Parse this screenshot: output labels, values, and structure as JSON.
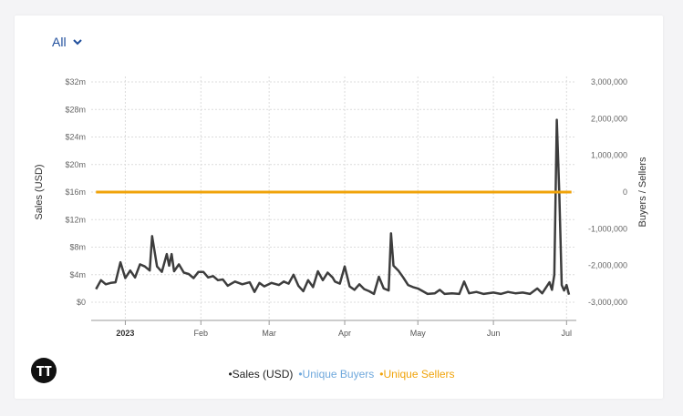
{
  "filter": {
    "range_label": "All"
  },
  "brand": {
    "logo_name": "tt-logo-icon"
  },
  "colors": {
    "sales": "#3d3d3d",
    "buyers": "#6fa8dc",
    "sellers": "#f0a30a",
    "grid": "#dcdcdc",
    "accent": "#1f4e9c"
  },
  "chart_data": {
    "type": "line",
    "title": "",
    "xlabel": "",
    "ylabel": "Sales (USD)",
    "y2label": "Buyers / Sellers",
    "x_start": "2022-12-18",
    "x_end": "2023-07-05",
    "x_ticks": [
      {
        "date": "2023-01-01",
        "label": "2023",
        "bold": true
      },
      {
        "date": "2023-02-01",
        "label": "Feb",
        "bold": false
      },
      {
        "date": "2023-03-01",
        "label": "Mar",
        "bold": false
      },
      {
        "date": "2023-04-01",
        "label": "Apr",
        "bold": false
      },
      {
        "date": "2023-05-01",
        "label": "May",
        "bold": false
      },
      {
        "date": "2023-06-01",
        "label": "Jun",
        "bold": false
      },
      {
        "date": "2023-07-01",
        "label": "Jul",
        "bold": false
      }
    ],
    "ylim": [
      0,
      32000000
    ],
    "y_ticks": [
      {
        "value": 0,
        "label": "$0"
      },
      {
        "value": 4000000,
        "label": "$4m"
      },
      {
        "value": 8000000,
        "label": "$8m"
      },
      {
        "value": 12000000,
        "label": "$12m"
      },
      {
        "value": 16000000,
        "label": "$16m"
      },
      {
        "value": 20000000,
        "label": "$20m"
      },
      {
        "value": 24000000,
        "label": "$24m"
      },
      {
        "value": 28000000,
        "label": "$28m"
      },
      {
        "value": 32000000,
        "label": "$32m"
      }
    ],
    "y2lim": [
      -3000000,
      3000000
    ],
    "y2_ticks": [
      {
        "value": -3000000,
        "label": "-3,000,000"
      },
      {
        "value": -2000000,
        "label": "-2,000,000"
      },
      {
        "value": -1000000,
        "label": "-1,000,000"
      },
      {
        "value": 0,
        "label": "0"
      },
      {
        "value": 1000000,
        "label": "1,000,000"
      },
      {
        "value": 2000000,
        "label": "2,000,000"
      },
      {
        "value": 3000000,
        "label": "3,000,000"
      }
    ],
    "grid": true,
    "legend_position": "bottom-center",
    "series": [
      {
        "name": "Sales (USD)",
        "axis": "left",
        "points": [
          [
            "2022-12-20",
            1.9
          ],
          [
            "2022-12-22",
            3.2
          ],
          [
            "2022-12-24",
            2.6
          ],
          [
            "2022-12-26",
            2.8
          ],
          [
            "2022-12-28",
            2.9
          ],
          [
            "2022-12-30",
            5.8
          ],
          [
            "2023-01-01",
            3.5
          ],
          [
            "2023-01-03",
            4.6
          ],
          [
            "2023-01-05",
            3.6
          ],
          [
            "2023-01-07",
            5.5
          ],
          [
            "2023-01-09",
            5.2
          ],
          [
            "2023-01-11",
            4.6
          ],
          [
            "2023-01-12",
            9.6
          ],
          [
            "2023-01-14",
            5.2
          ],
          [
            "2023-01-16",
            4.4
          ],
          [
            "2023-01-18",
            7.0
          ],
          [
            "2023-01-19",
            5.3
          ],
          [
            "2023-01-20",
            7.0
          ],
          [
            "2023-01-21",
            4.5
          ],
          [
            "2023-01-23",
            5.5
          ],
          [
            "2023-01-25",
            4.3
          ],
          [
            "2023-01-27",
            4.1
          ],
          [
            "2023-01-29",
            3.5
          ],
          [
            "2023-01-31",
            4.4
          ],
          [
            "2023-02-02",
            4.4
          ],
          [
            "2023-02-04",
            3.6
          ],
          [
            "2023-02-06",
            3.8
          ],
          [
            "2023-02-08",
            3.2
          ],
          [
            "2023-02-10",
            3.3
          ],
          [
            "2023-02-12",
            2.4
          ],
          [
            "2023-02-15",
            3.0
          ],
          [
            "2023-02-18",
            2.6
          ],
          [
            "2023-02-21",
            2.9
          ],
          [
            "2023-02-23",
            1.5
          ],
          [
            "2023-02-25",
            2.8
          ],
          [
            "2023-02-27",
            2.3
          ],
          [
            "2023-03-02",
            2.8
          ],
          [
            "2023-03-05",
            2.5
          ],
          [
            "2023-03-07",
            3.0
          ],
          [
            "2023-03-09",
            2.7
          ],
          [
            "2023-03-11",
            4.0
          ],
          [
            "2023-03-13",
            2.4
          ],
          [
            "2023-03-15",
            1.6
          ],
          [
            "2023-03-17",
            3.2
          ],
          [
            "2023-03-19",
            2.2
          ],
          [
            "2023-03-21",
            4.5
          ],
          [
            "2023-03-23",
            3.2
          ],
          [
            "2023-03-25",
            4.3
          ],
          [
            "2023-03-27",
            3.6
          ],
          [
            "2023-03-28",
            3.0
          ],
          [
            "2023-03-30",
            2.7
          ],
          [
            "2023-04-01",
            5.2
          ],
          [
            "2023-04-03",
            2.3
          ],
          [
            "2023-04-05",
            1.8
          ],
          [
            "2023-04-07",
            2.6
          ],
          [
            "2023-04-09",
            1.9
          ],
          [
            "2023-04-11",
            1.6
          ],
          [
            "2023-04-13",
            1.2
          ],
          [
            "2023-04-15",
            3.7
          ],
          [
            "2023-04-17",
            2.0
          ],
          [
            "2023-04-19",
            1.7
          ],
          [
            "2023-04-20",
            10.0
          ],
          [
            "2023-04-21",
            5.3
          ],
          [
            "2023-04-23",
            4.6
          ],
          [
            "2023-04-25",
            3.6
          ],
          [
            "2023-04-27",
            2.5
          ],
          [
            "2023-04-29",
            2.2
          ],
          [
            "2023-05-01",
            2.0
          ],
          [
            "2023-05-03",
            1.6
          ],
          [
            "2023-05-05",
            1.2
          ],
          [
            "2023-05-08",
            1.3
          ],
          [
            "2023-05-10",
            1.8
          ],
          [
            "2023-05-12",
            1.2
          ],
          [
            "2023-05-15",
            1.3
          ],
          [
            "2023-05-18",
            1.2
          ],
          [
            "2023-05-20",
            3.0
          ],
          [
            "2023-05-22",
            1.3
          ],
          [
            "2023-05-25",
            1.5
          ],
          [
            "2023-05-28",
            1.2
          ],
          [
            "2023-06-01",
            1.4
          ],
          [
            "2023-06-04",
            1.2
          ],
          [
            "2023-06-07",
            1.5
          ],
          [
            "2023-06-10",
            1.3
          ],
          [
            "2023-06-13",
            1.4
          ],
          [
            "2023-06-16",
            1.2
          ],
          [
            "2023-06-19",
            2.0
          ],
          [
            "2023-06-21",
            1.3
          ],
          [
            "2023-06-24",
            2.9
          ],
          [
            "2023-06-25",
            1.8
          ],
          [
            "2023-06-26",
            4.0
          ],
          [
            "2023-06-27",
            26.5
          ],
          [
            "2023-06-28",
            16.0
          ],
          [
            "2023-06-29",
            2.5
          ],
          [
            "2023-06-30",
            1.7
          ],
          [
            "2023-07-01",
            2.5
          ],
          [
            "2023-07-02",
            1.1
          ]
        ]
      },
      {
        "name": "Unique Buyers",
        "axis": "right",
        "points": []
      },
      {
        "name": "Unique Sellers",
        "axis": "right",
        "points": [
          [
            "2022-12-20",
            0
          ],
          [
            "2023-01-15",
            0
          ],
          [
            "2023-02-15",
            0
          ],
          [
            "2023-03-15",
            0
          ],
          [
            "2023-04-15",
            0
          ],
          [
            "2023-05-15",
            0
          ],
          [
            "2023-06-15",
            0
          ],
          [
            "2023-07-03",
            0
          ]
        ]
      }
    ]
  },
  "legend": {
    "items": [
      {
        "label": "•Sales (USD)"
      },
      {
        "label": "•Unique Buyers"
      },
      {
        "label": "•Unique Sellers"
      }
    ]
  }
}
